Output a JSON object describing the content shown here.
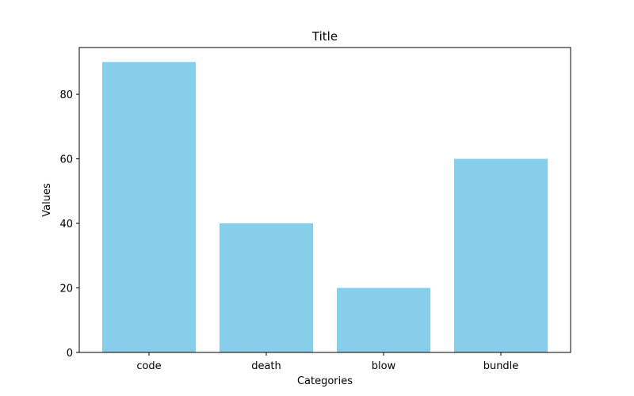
{
  "chart_data": {
    "type": "bar",
    "title": "Title",
    "xlabel": "Categories",
    "ylabel": "Values",
    "categories": [
      "code",
      "death",
      "blow",
      "bundle"
    ],
    "values": [
      90,
      40,
      20,
      60
    ],
    "ylim": [
      0,
      94.5
    ],
    "yticks": [
      0,
      20,
      40,
      60,
      80
    ],
    "bar_color": "#87CEEB",
    "grid": false,
    "legend": false
  }
}
